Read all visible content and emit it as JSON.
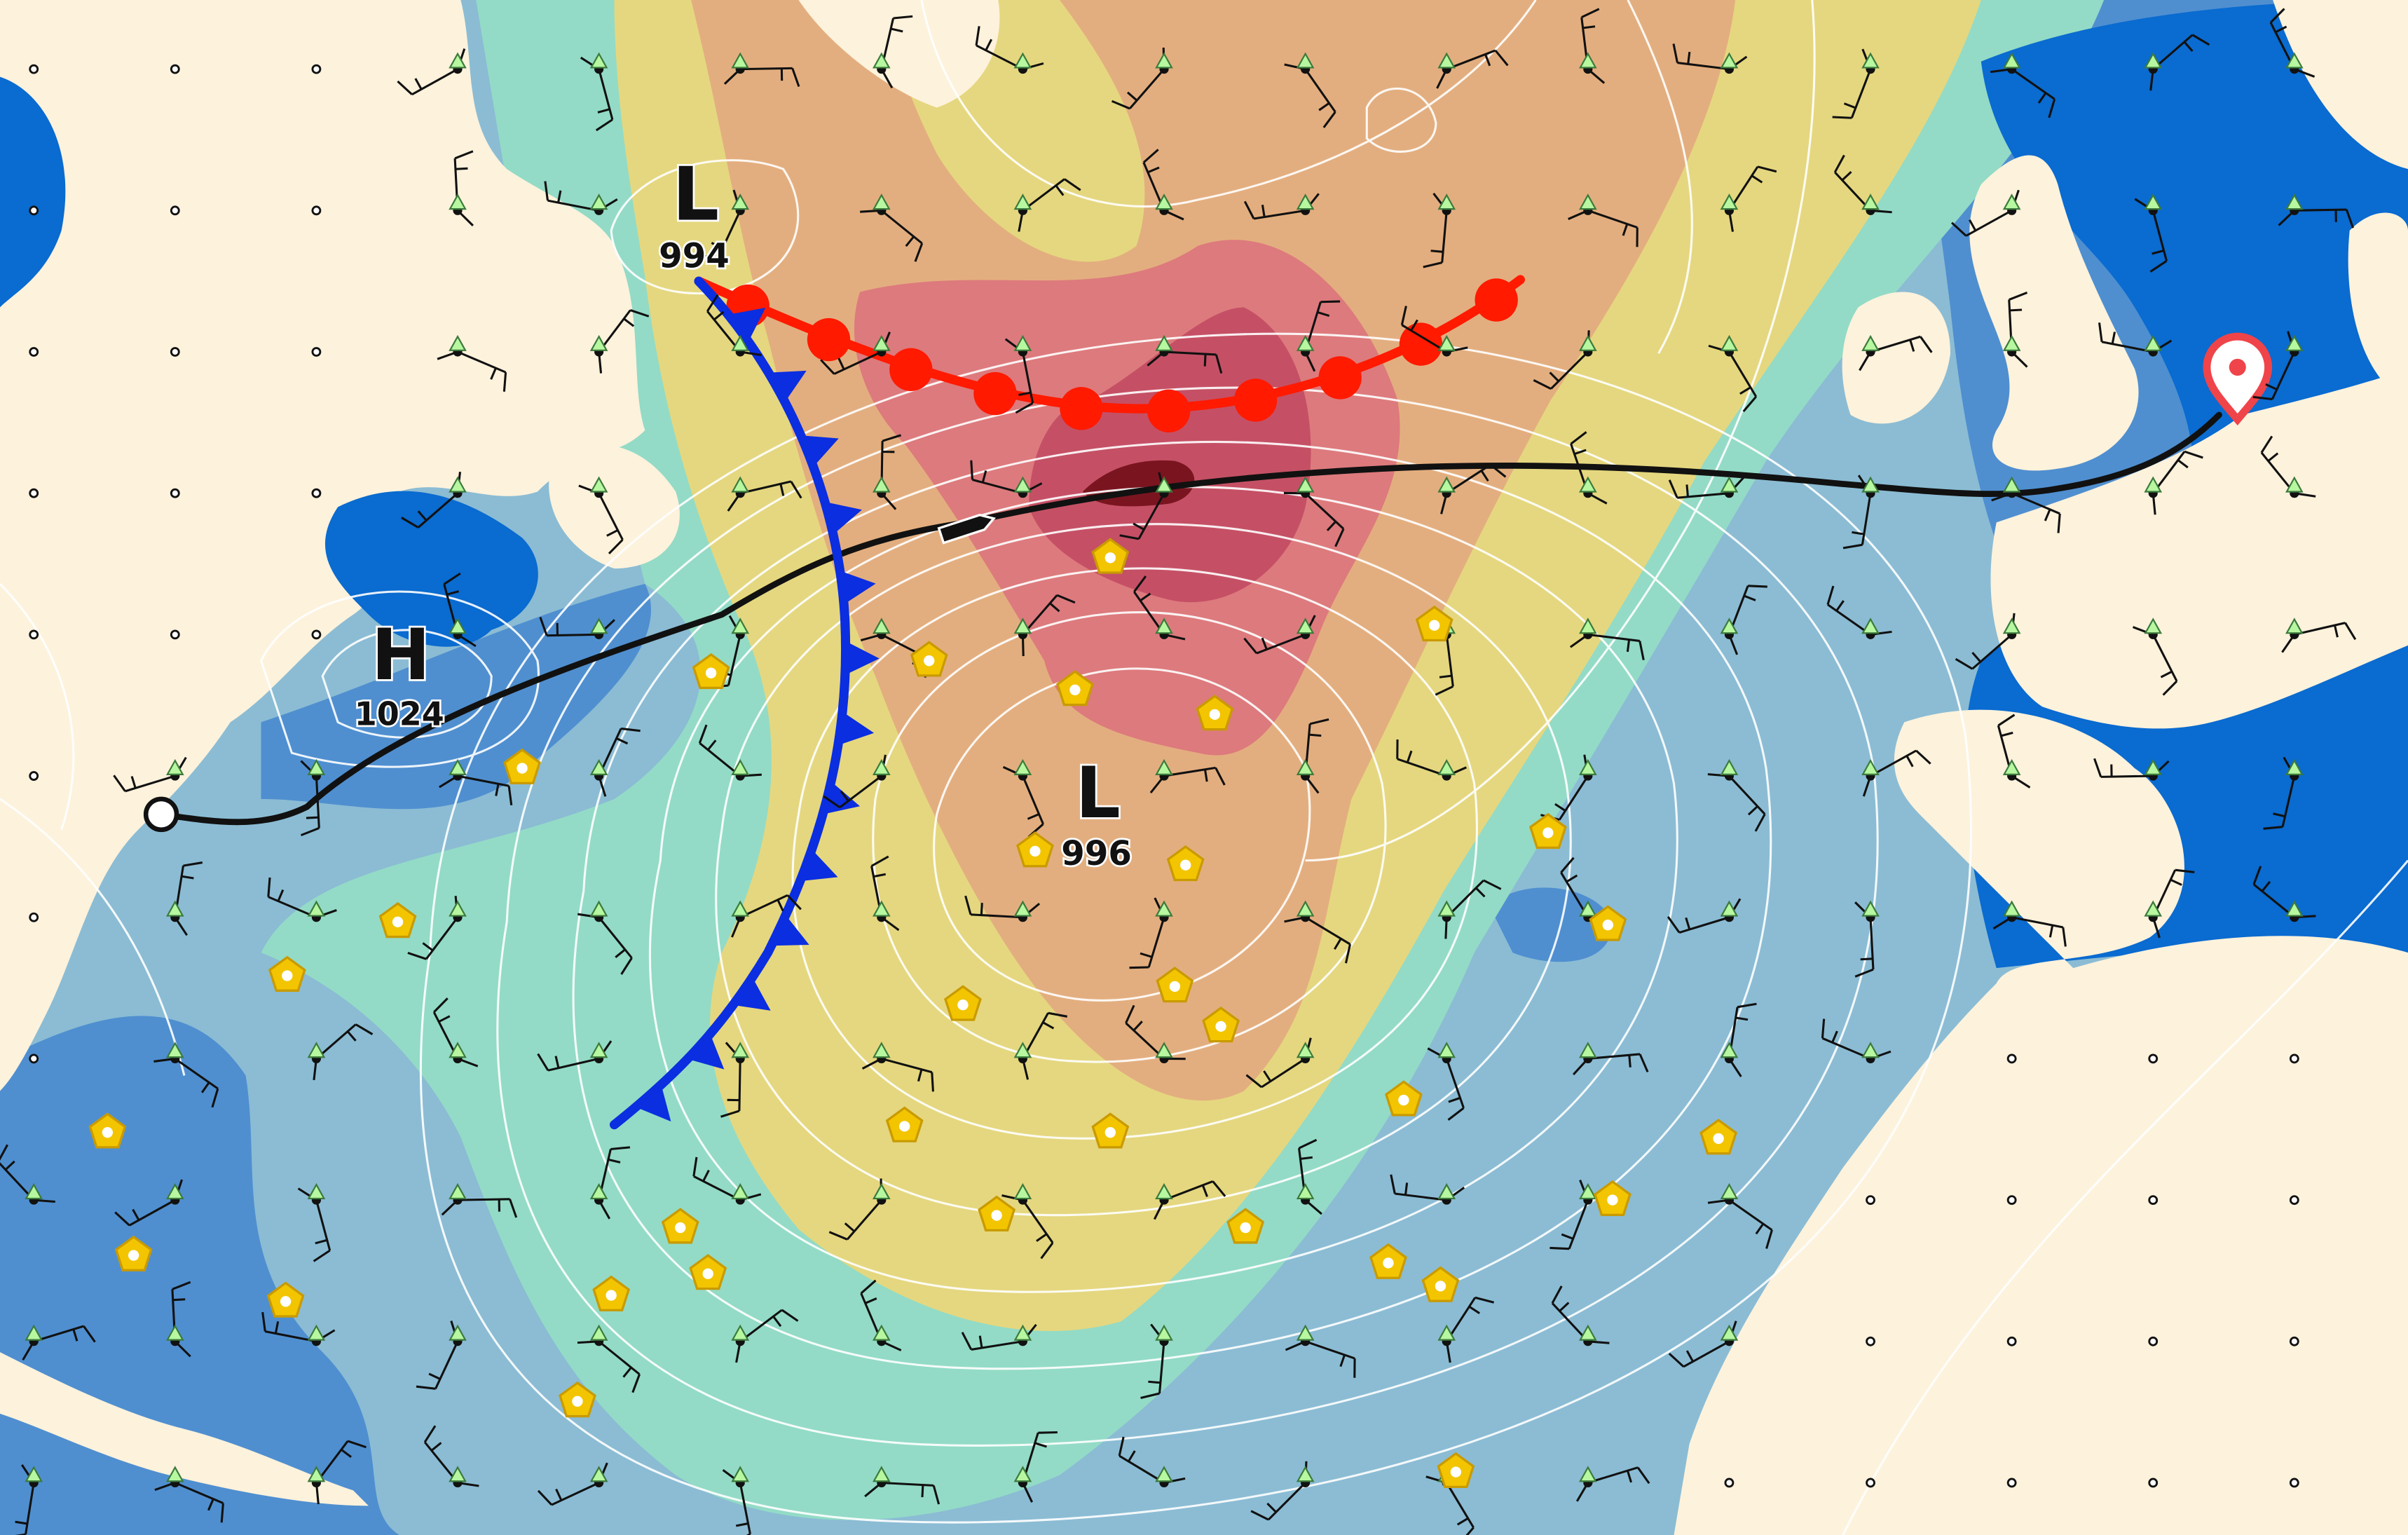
{
  "map": {
    "pressure_systems": [
      {
        "type": "L",
        "value": "994"
      },
      {
        "type": "H",
        "value": "1024"
      },
      {
        "type": "L",
        "value": "996"
      }
    ],
    "fronts": [
      "warm-front",
      "cold-front"
    ],
    "route": {
      "start_icon": "origin-circle-icon",
      "end_icon": "location-pin-icon",
      "vessel_icon": "ship-icon"
    },
    "legend_colors": {
      "ocean": "#8bbcd4",
      "deep_sea": "#0a6bd0",
      "mid_blue": "#4f8fd0",
      "land": "#fdf2dc",
      "teal": "#93dbc6",
      "yellow": "#e5d77f",
      "orange": "#e3ae7f",
      "red": "#dd7a7d",
      "dark_red": "#c55065",
      "deepest": "#7a1520",
      "warm_front": "#ff1a00",
      "cold_front": "#0a2ee0",
      "hazard_marker": "#f2c500",
      "pin": "#ef4449"
    },
    "icons": [
      "wind-barb-icon",
      "wave-arrow-icon",
      "hazard-pentagon-icon",
      "station-dot-icon"
    ]
  }
}
